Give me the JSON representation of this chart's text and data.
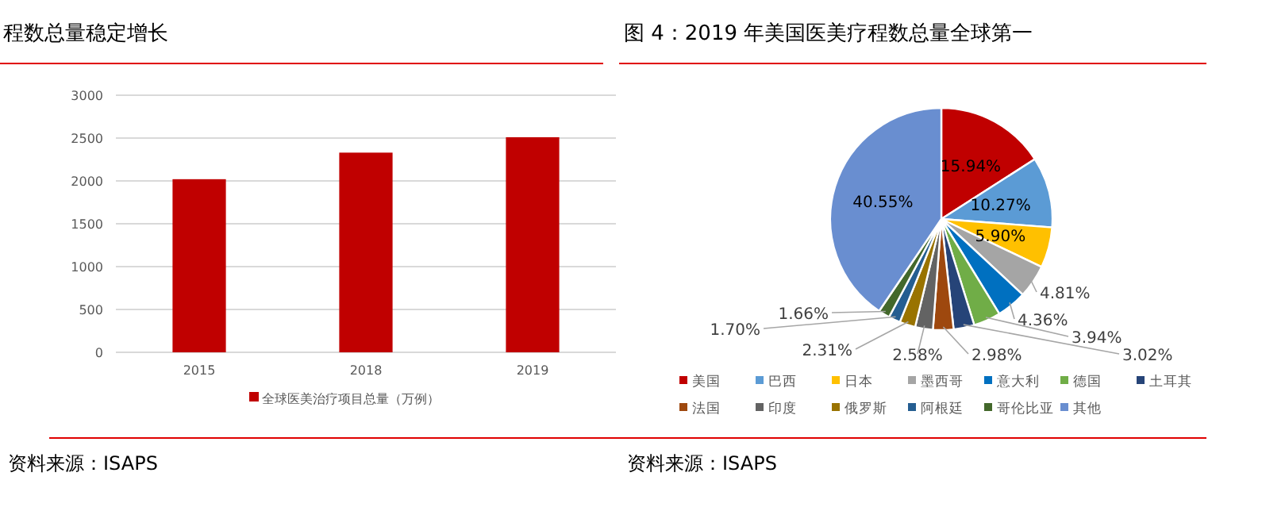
{
  "chart_data": [
    {
      "type": "bar",
      "title": "程数总量稳定增长",
      "categories": [
        "2015",
        "2018",
        "2019"
      ],
      "series": [
        {
          "name": "全球医美治疗项目总量（万例）",
          "color": "#c00000",
          "values": [
            2020,
            2330,
            2510
          ]
        }
      ],
      "ylim": [
        0,
        3000
      ],
      "yticks": [
        0,
        500,
        1000,
        1500,
        2000,
        2500,
        3000
      ],
      "grid": "y",
      "legend": "bottom",
      "annotations": [
        "资料来源：ISAPS"
      ]
    },
    {
      "type": "pie",
      "title": "图 4：2019 年美国医美疗程数总量全球第一",
      "categories": [
        "美国",
        "巴西",
        "日本",
        "墨西哥",
        "意大利",
        "德国",
        "土耳其",
        "法国",
        "印度",
        "俄罗斯",
        "阿根廷",
        "哥伦比亚",
        "其他"
      ],
      "values": [
        15.94,
        10.27,
        5.9,
        4.81,
        4.36,
        3.94,
        3.02,
        2.98,
        2.58,
        2.31,
        1.7,
        1.66,
        40.55
      ],
      "value_labels": [
        "15.94%",
        "10.27%",
        "5.90%",
        "4.81%",
        "4.36%",
        "3.94%",
        "3.02%",
        "2.98%",
        "2.58%",
        "2.31%",
        "1.70%",
        "1.66%",
        "40.55%"
      ],
      "colors": [
        "#c00000",
        "#5b9bd5",
        "#ffc000",
        "#a5a5a5",
        "#0070c0",
        "#70ad47",
        "#264478",
        "#9e480e",
        "#636363",
        "#997300",
        "#255e91",
        "#43682b",
        "#698ed0"
      ],
      "legend": "bottom",
      "annotations": [
        "资料来源：ISAPS"
      ]
    }
  ]
}
